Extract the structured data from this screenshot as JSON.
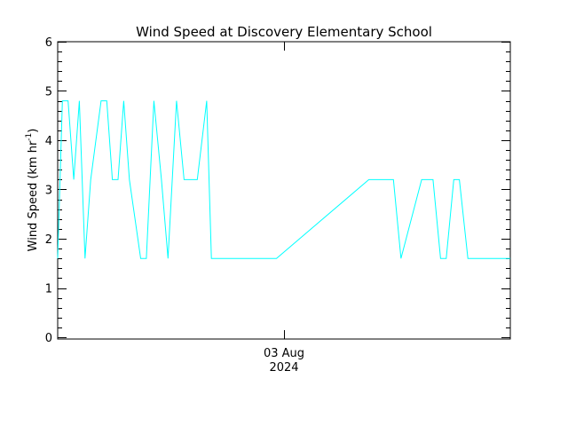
{
  "chart_data": {
    "type": "line",
    "title": "Wind Speed at Discovery Elementary School",
    "ylabel": "Wind Speed (km hr",
    "ylabel_superscript": "-1",
    "ylabel_close": ")",
    "ylim": [
      0,
      6
    ],
    "yticks": [
      0,
      1,
      2,
      3,
      4,
      5,
      6
    ],
    "xlim_hours": [
      0,
      24
    ],
    "xtick_labels": [
      {
        "line1": "03 Aug",
        "line2": "2024",
        "at_hours": 12
      }
    ],
    "grid": false,
    "line_color": "#00ffff",
    "series": [
      {
        "x_hours": [
          0.0,
          0.25,
          0.55,
          0.85,
          1.15,
          1.45,
          1.75,
          2.3,
          2.6,
          2.9,
          3.2,
          3.5,
          3.8,
          4.4,
          4.7,
          5.1,
          5.5,
          5.85,
          6.3,
          6.7,
          7.0,
          7.4,
          7.9,
          8.15,
          8.5,
          11.6,
          16.5,
          17.8,
          18.2,
          19.3,
          19.9,
          20.3,
          20.6,
          21.0,
          21.3,
          21.75,
          24.0
        ],
        "values": [
          1.6,
          4.8,
          4.8,
          3.2,
          4.8,
          1.6,
          3.2,
          4.8,
          4.8,
          3.2,
          3.2,
          4.8,
          3.2,
          1.6,
          1.6,
          4.8,
          3.2,
          1.6,
          4.8,
          3.2,
          3.2,
          3.2,
          4.8,
          1.6,
          1.6,
          1.6,
          3.2,
          3.2,
          1.6,
          3.2,
          3.2,
          1.6,
          1.6,
          3.2,
          3.2,
          1.6,
          1.6
        ]
      }
    ]
  }
}
